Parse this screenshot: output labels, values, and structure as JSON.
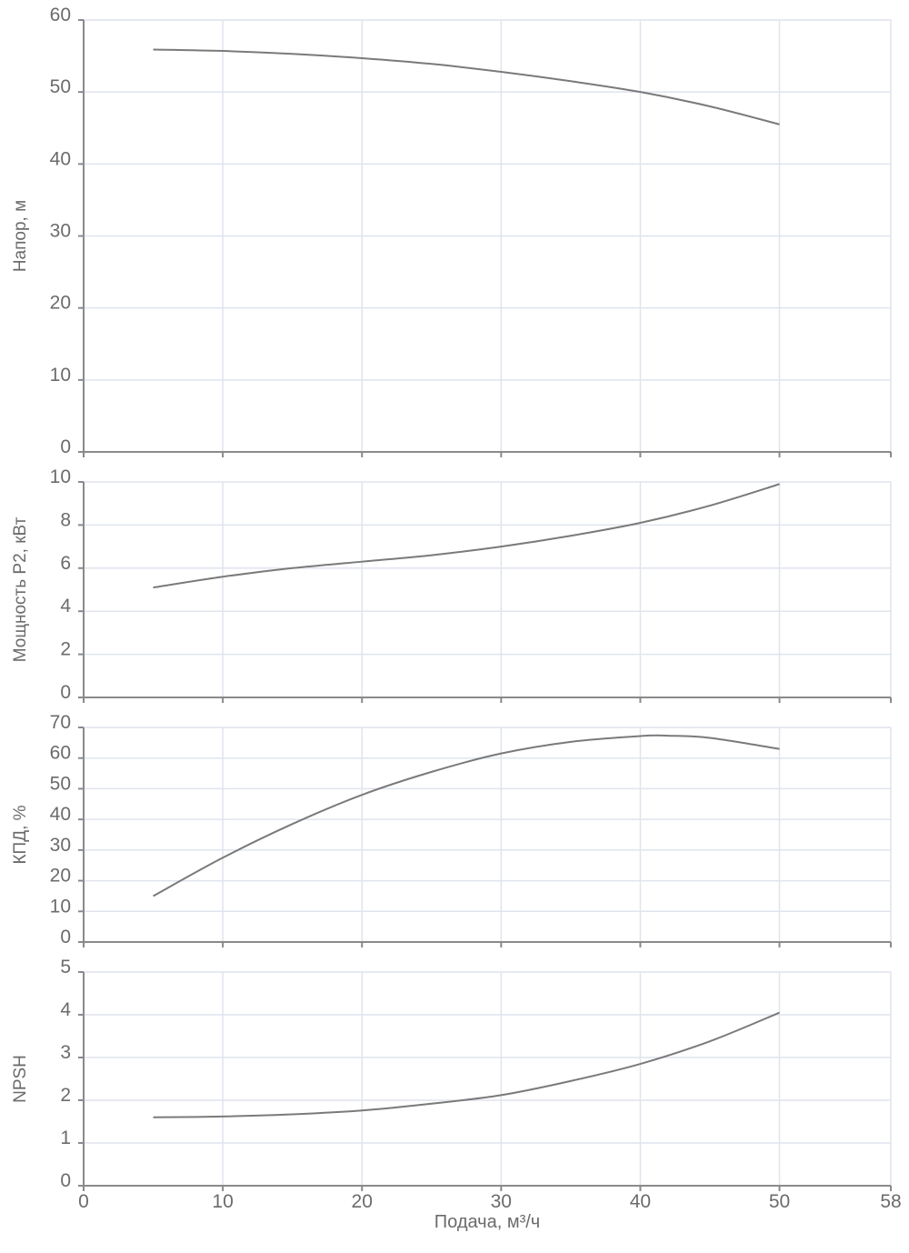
{
  "chart_data": {
    "type": "line",
    "x_axis": {
      "label": "Подача, м³/ч",
      "range": [
        0,
        58
      ],
      "ticks": [
        0,
        10,
        20,
        30,
        40,
        50,
        58
      ]
    },
    "panels": [
      {
        "ylabel": "Напор, м",
        "ylim": [
          0,
          60
        ],
        "yticks": [
          0,
          10,
          20,
          30,
          40,
          50,
          60
        ],
        "series": [
          {
            "x": [
              5,
              10,
              15,
              20,
              25,
              30,
              35,
              40,
              45,
              50
            ],
            "y": [
              55.9,
              55.7,
              55.3,
              54.7,
              53.9,
              52.8,
              51.5,
              50.0,
              48.0,
              45.5
            ]
          }
        ]
      },
      {
        "ylabel": "Мощность P2, кВт",
        "ylim": [
          0,
          10
        ],
        "yticks": [
          0,
          2,
          4,
          6,
          8,
          10
        ],
        "series": [
          {
            "x": [
              5,
              10,
              15,
              20,
              25,
              30,
              35,
              40,
              45,
              50
            ],
            "y": [
              5.1,
              5.6,
              6.0,
              6.3,
              6.6,
              7.0,
              7.5,
              8.1,
              8.9,
              9.9
            ]
          }
        ]
      },
      {
        "ylabel": "КПД, %",
        "ylim": [
          0,
          70
        ],
        "yticks": [
          0,
          10,
          20,
          30,
          40,
          50,
          60,
          70
        ],
        "series": [
          {
            "x": [
              5,
              10,
              15,
              20,
              25,
              30,
              35,
              40,
              42,
              45,
              50
            ],
            "y": [
              15,
              27.5,
              38.5,
              48,
              55.5,
              61.5,
              65.3,
              67.2,
              67.3,
              66.6,
              63
            ]
          }
        ]
      },
      {
        "ylabel": "NPSH",
        "ylim": [
          0,
          5
        ],
        "yticks": [
          0,
          1,
          2,
          3,
          4,
          5
        ],
        "series": [
          {
            "x": [
              5,
              10,
              15,
              20,
              25,
              30,
              35,
              40,
              45,
              50
            ],
            "y": [
              1.6,
              1.62,
              1.67,
              1.76,
              1.92,
              2.12,
              2.45,
              2.85,
              3.38,
              4.05
            ]
          }
        ]
      }
    ],
    "grid": true,
    "legend": "none",
    "colors": {
      "curve": "#7a7a7a",
      "axis": "#8a8a8a",
      "grid": "#dfe4ee",
      "text": "#6b6b6b"
    }
  }
}
